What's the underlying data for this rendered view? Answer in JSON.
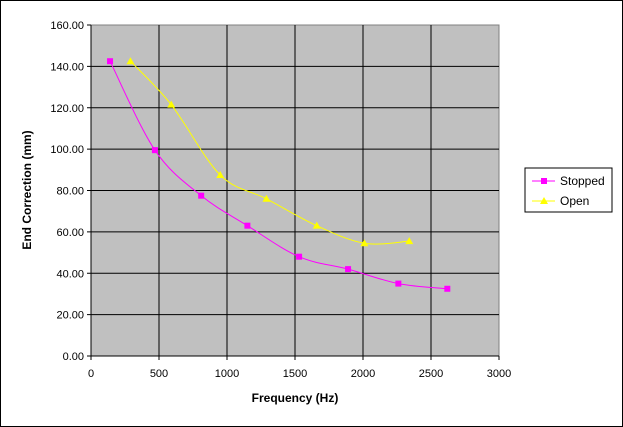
{
  "chart_data": {
    "type": "scatter",
    "xlabel": "Frequency (Hz)",
    "ylabel": "End Correction (mm)",
    "xlim": [
      0,
      3000
    ],
    "ylim": [
      0,
      160
    ],
    "x_ticks": [
      "0",
      "500",
      "1000",
      "1500",
      "2000",
      "2500",
      "3000"
    ],
    "y_ticks": [
      "0.00",
      "20.00",
      "40.00",
      "60.00",
      "80.00",
      "100.00",
      "120.00",
      "140.00",
      "160.00"
    ],
    "grid": true,
    "plot_background": "#c0c0c0",
    "legend_position": "right",
    "series": [
      {
        "name": "Stopped",
        "color": "#ff00ff",
        "marker": "square",
        "x": [
          140,
          470,
          810,
          1150,
          1530,
          1890,
          2260,
          2620
        ],
        "y": [
          142.5,
          99.5,
          77.5,
          63.0,
          48.0,
          42.0,
          35.0,
          32.5
        ]
      },
      {
        "name": "Open",
        "color": "#ffff00",
        "marker": "triangle",
        "x": [
          290,
          590,
          950,
          1290,
          1660,
          2010,
          2340
        ],
        "y": [
          142.5,
          121.5,
          87.5,
          76.0,
          63.0,
          54.5,
          55.5
        ]
      }
    ]
  }
}
